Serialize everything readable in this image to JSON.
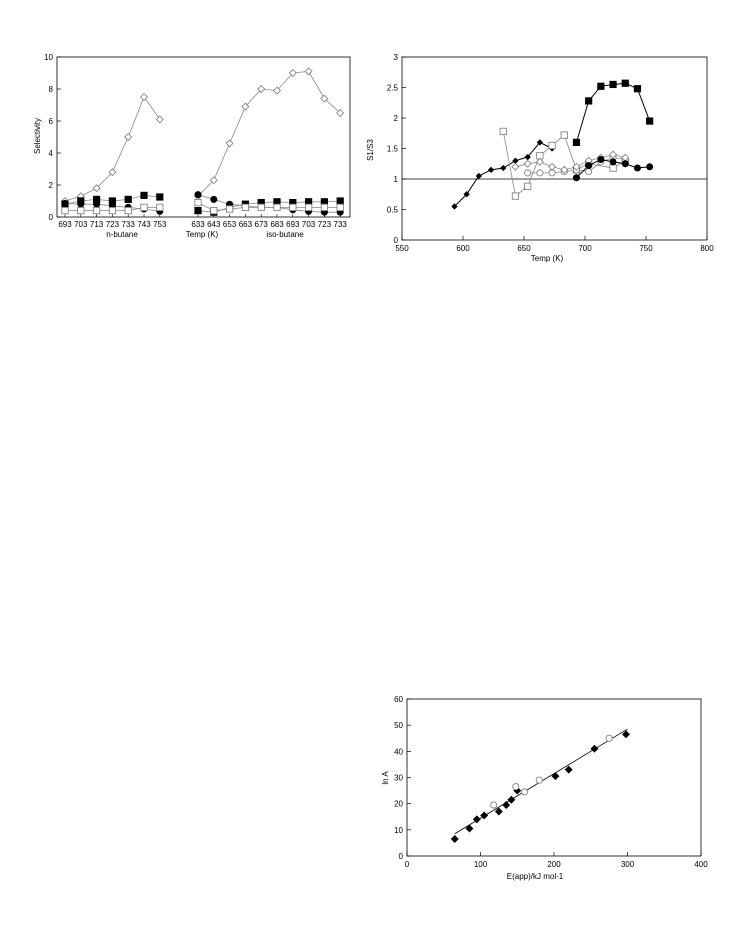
{
  "chart_data": [
    {
      "type": "line",
      "ylabel": "Selectivity",
      "ylim": [
        0,
        10
      ],
      "yticks": [
        0,
        2,
        4,
        6,
        8,
        10
      ],
      "groups": [
        {
          "label": "n-butane",
          "categories": [
            "693",
            "703",
            "713",
            "723",
            "733",
            "743",
            "753"
          ],
          "series": [
            {
              "marker": "open-diamond",
              "values": [
                1.0,
                1.3,
                1.8,
                2.8,
                5.0,
                7.5,
                6.1
              ]
            },
            {
              "marker": "filled-square",
              "values": [
                0.8,
                1.0,
                1.1,
                1.0,
                1.1,
                1.35,
                1.25
              ]
            },
            {
              "marker": "filled-circle",
              "values": [
                0.85,
                0.8,
                0.8,
                0.7,
                0.6,
                0.5,
                0.35
              ]
            },
            {
              "marker": "open-square",
              "values": [
                0.4,
                0.4,
                0.4,
                0.4,
                0.4,
                0.6,
                0.6
              ]
            }
          ]
        },
        {
          "label": "iso-butane",
          "categories": [
            "633",
            "643",
            "653",
            "663",
            "673",
            "683",
            "693",
            "703",
            "723",
            "733"
          ],
          "series": [
            {
              "marker": "open-diamond",
              "values": [
                1.3,
                2.3,
                4.6,
                6.9,
                8.0,
                7.9,
                9.0,
                9.1,
                7.4,
                6.5
              ]
            },
            {
              "marker": "filled-circle",
              "values": [
                1.4,
                1.1,
                0.8,
                0.7,
                0.6,
                0.6,
                0.45,
                0.35,
                0.3,
                0.3
              ]
            },
            {
              "marker": "filled-square",
              "values": [
                0.4,
                0.3,
                0.6,
                0.8,
                0.9,
                0.95,
                0.9,
                0.95,
                0.95,
                1.0
              ]
            },
            {
              "marker": "open-square",
              "values": [
                0.9,
                0.4,
                0.5,
                0.6,
                0.6,
                0.6,
                0.6,
                0.6,
                0.6,
                0.6
              ]
            }
          ]
        }
      ],
      "xlabel_center": "Temp (K)"
    },
    {
      "type": "line",
      "xlabel": "Temp (K)",
      "ylabel": "S1/S3",
      "xlim": [
        550,
        800
      ],
      "ylim": [
        0,
        3
      ],
      "xticks": [
        550,
        600,
        650,
        700,
        750,
        800
      ],
      "yticks": [
        "0",
        "0.5",
        "1",
        "1.5",
        "2",
        "2.5",
        "3"
      ],
      "reference_line_y": 1,
      "series": [
        {
          "marker": "filled-diamond-small",
          "points": [
            [
              593,
              0.55
            ],
            [
              603,
              0.75
            ],
            [
              613,
              1.05
            ],
            [
              623,
              1.15
            ],
            [
              633,
              1.18
            ],
            [
              643,
              1.3
            ],
            [
              653,
              1.36
            ],
            [
              663,
              1.6
            ],
            [
              673,
              1.5
            ]
          ]
        },
        {
          "marker": "open-square",
          "points": [
            [
              633,
              1.78
            ],
            [
              643,
              0.72
            ],
            [
              653,
              0.88
            ],
            [
              663,
              1.38
            ],
            [
              673,
              1.55
            ],
            [
              683,
              1.72
            ],
            [
              693,
              1.15
            ],
            [
              703,
              1.25
            ],
            [
              723,
              1.18
            ],
            [
              733,
              1.3
            ]
          ]
        },
        {
          "marker": "open-circle",
          "points": [
            [
              653,
              1.1
            ],
            [
              663,
              1.1
            ],
            [
              673,
              1.1
            ],
            [
              683,
              1.12
            ],
            [
              693,
              1.15
            ],
            [
              703,
              1.12
            ],
            [
              713,
              1.28
            ],
            [
              723,
              1.35
            ],
            [
              733,
              1.32
            ]
          ]
        },
        {
          "marker": "open-diamond",
          "points": [
            [
              643,
              1.2
            ],
            [
              653,
              1.25
            ],
            [
              663,
              1.28
            ],
            [
              673,
              1.2
            ],
            [
              683,
              1.15
            ],
            [
              693,
              1.2
            ],
            [
              703,
              1.3
            ],
            [
              713,
              1.35
            ],
            [
              723,
              1.4
            ],
            [
              733,
              1.35
            ]
          ]
        },
        {
          "marker": "filled-square",
          "points": [
            [
              693,
              1.6
            ],
            [
              703,
              2.28
            ],
            [
              713,
              2.52
            ],
            [
              723,
              2.55
            ],
            [
              733,
              2.57
            ],
            [
              743,
              2.48
            ],
            [
              753,
              1.95
            ]
          ]
        },
        {
          "marker": "filled-circle",
          "points": [
            [
              693,
              1.02
            ],
            [
              703,
              1.22
            ],
            [
              713,
              1.32
            ],
            [
              723,
              1.28
            ],
            [
              733,
              1.25
            ],
            [
              743,
              1.18
            ],
            [
              753,
              1.2
            ]
          ]
        }
      ]
    },
    {
      "type": "scatter",
      "xlabel": "E(app)/kJ mol-1",
      "ylabel": "ln A",
      "xlim": [
        0,
        400
      ],
      "ylim": [
        0,
        60
      ],
      "xticks": [
        0,
        100,
        200,
        300,
        400
      ],
      "yticks": [
        0,
        10,
        20,
        30,
        40,
        50,
        60
      ],
      "series": [
        {
          "marker": "filled-diamond",
          "points": [
            [
              65,
              6.5
            ],
            [
              85,
              10.5
            ],
            [
              95,
              14
            ],
            [
              105,
              15.5
            ],
            [
              125,
              17
            ],
            [
              135,
              19.5
            ],
            [
              142,
              21.5
            ],
            [
              150,
              25
            ],
            [
              202,
              30.5
            ],
            [
              220,
              33
            ],
            [
              255,
              41
            ],
            [
              298,
              46.5
            ]
          ]
        },
        {
          "marker": "open-circle",
          "points": [
            [
              118,
              19.5
            ],
            [
              148,
              26.5
            ],
            [
              160,
              24.5
            ],
            [
              180,
              29
            ],
            [
              275,
              45
            ]
          ]
        }
      ],
      "fit_line": [
        [
          65,
          8.5
        ],
        [
          300,
          48.5
        ]
      ]
    }
  ]
}
